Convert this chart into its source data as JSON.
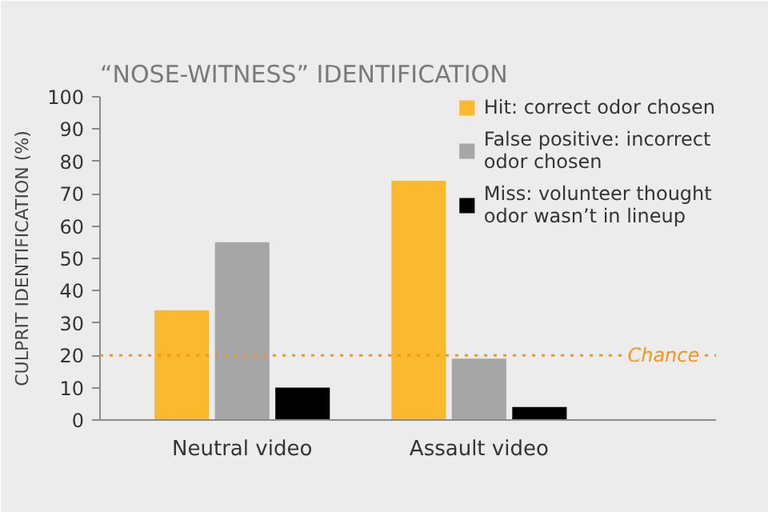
{
  "chart_data": {
    "type": "bar",
    "title": "“NOSE-WITNESS” IDENTIFICATION",
    "ylabel": "CULPRIT IDENTIFICATION (%)",
    "categories": [
      "Neutral video",
      "Assault video"
    ],
    "series": [
      {
        "name": "Hit: correct odor chosen",
        "color": "#fbb92f",
        "values": [
          34,
          74
        ]
      },
      {
        "name": "False positive: incorrect\nodor chosen",
        "color": "#a6a6a6",
        "values": [
          55,
          19
        ]
      },
      {
        "name": "Miss: volunteer thought\nodor wasn’t in lineup",
        "color": "#000000",
        "values": [
          10,
          4
        ]
      }
    ],
    "ylim": [
      0,
      100
    ],
    "yticks": [
      0,
      10,
      20,
      30,
      40,
      50,
      60,
      70,
      80,
      90,
      100
    ],
    "ref_lines": [
      {
        "axis": "y",
        "value": 20,
        "label": "Chance",
        "color": "#f7941d",
        "line_style": "dotted"
      }
    ],
    "grid": false,
    "legend": "top right"
  }
}
